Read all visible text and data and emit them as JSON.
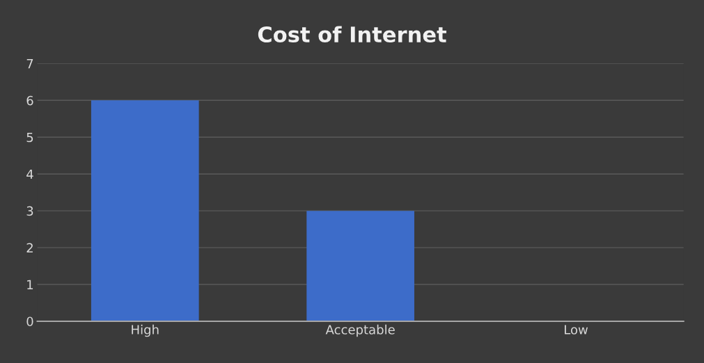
{
  "chart_data": {
    "type": "bar",
    "title": "Cost of Internet",
    "categories": [
      "High",
      "Acceptable",
      "Low"
    ],
    "values": [
      6,
      3,
      0
    ],
    "color": "#3d6cc9",
    "ylim": [
      0,
      7
    ],
    "yticks": [
      0,
      1,
      2,
      3,
      4,
      5,
      6,
      7
    ],
    "grid": "y"
  }
}
